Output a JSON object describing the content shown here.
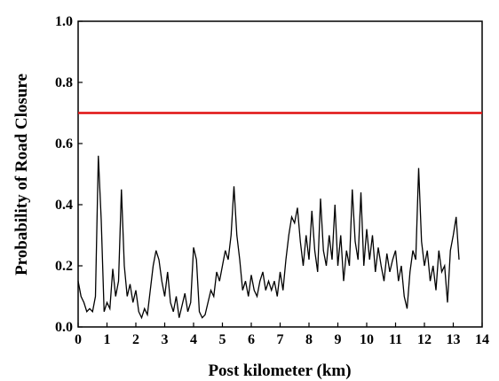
{
  "chart_data": {
    "type": "line",
    "xlabel": "Post kilometer (km)",
    "ylabel": "Probability of Road Closure",
    "x": [
      0.0,
      0.1,
      0.2,
      0.3,
      0.4,
      0.5,
      0.6,
      0.7,
      0.8,
      0.9,
      1.0,
      1.1,
      1.2,
      1.3,
      1.4,
      1.5,
      1.6,
      1.7,
      1.8,
      1.9,
      2.0,
      2.1,
      2.2,
      2.3,
      2.4,
      2.5,
      2.6,
      2.7,
      2.8,
      2.9,
      3.0,
      3.1,
      3.2,
      3.3,
      3.4,
      3.5,
      3.6,
      3.7,
      3.8,
      3.9,
      4.0,
      4.1,
      4.2,
      4.3,
      4.4,
      4.5,
      4.6,
      4.7,
      4.8,
      4.9,
      5.0,
      5.1,
      5.2,
      5.3,
      5.4,
      5.5,
      5.6,
      5.7,
      5.8,
      5.9,
      6.0,
      6.1,
      6.2,
      6.3,
      6.4,
      6.5,
      6.6,
      6.7,
      6.8,
      6.9,
      7.0,
      7.1,
      7.2,
      7.3,
      7.4,
      7.5,
      7.6,
      7.7,
      7.8,
      7.9,
      8.0,
      8.1,
      8.2,
      8.3,
      8.4,
      8.5,
      8.6,
      8.7,
      8.8,
      8.9,
      9.0,
      9.1,
      9.2,
      9.3,
      9.4,
      9.5,
      9.6,
      9.7,
      9.8,
      9.9,
      10.0,
      10.1,
      10.2,
      10.3,
      10.4,
      10.5,
      10.6,
      10.7,
      10.8,
      10.9,
      11.0,
      11.1,
      11.2,
      11.3,
      11.4,
      11.5,
      11.6,
      11.7,
      11.8,
      11.9,
      12.0,
      12.1,
      12.2,
      12.3,
      12.4,
      12.5,
      12.6,
      12.7,
      12.8,
      12.9,
      13.0,
      13.1,
      13.2
    ],
    "series": [
      {
        "color": "#000000",
        "values": [
          0.15,
          0.1,
          0.08,
          0.05,
          0.06,
          0.05,
          0.1,
          0.56,
          0.35,
          0.05,
          0.08,
          0.06,
          0.19,
          0.1,
          0.15,
          0.45,
          0.2,
          0.1,
          0.14,
          0.08,
          0.12,
          0.05,
          0.03,
          0.06,
          0.04,
          0.12,
          0.2,
          0.25,
          0.22,
          0.15,
          0.1,
          0.18,
          0.08,
          0.05,
          0.1,
          0.03,
          0.07,
          0.11,
          0.05,
          0.08,
          0.26,
          0.22,
          0.05,
          0.03,
          0.04,
          0.08,
          0.12,
          0.1,
          0.18,
          0.15,
          0.2,
          0.25,
          0.22,
          0.3,
          0.46,
          0.3,
          0.22,
          0.12,
          0.15,
          0.1,
          0.17,
          0.12,
          0.1,
          0.15,
          0.18,
          0.12,
          0.15,
          0.12,
          0.15,
          0.1,
          0.18,
          0.12,
          0.22,
          0.3,
          0.36,
          0.34,
          0.39,
          0.28,
          0.2,
          0.3,
          0.22,
          0.38,
          0.25,
          0.18,
          0.42,
          0.25,
          0.2,
          0.3,
          0.22,
          0.4,
          0.2,
          0.3,
          0.15,
          0.25,
          0.2,
          0.45,
          0.28,
          0.22,
          0.44,
          0.2,
          0.32,
          0.22,
          0.3,
          0.18,
          0.26,
          0.2,
          0.15,
          0.24,
          0.18,
          0.22,
          0.25,
          0.15,
          0.2,
          0.1,
          0.06,
          0.18,
          0.25,
          0.22,
          0.52,
          0.28,
          0.2,
          0.25,
          0.15,
          0.2,
          0.12,
          0.25,
          0.18,
          0.2,
          0.08,
          0.25,
          0.3,
          0.36,
          0.22
        ]
      }
    ],
    "hlines": [
      {
        "value": 0.7,
        "color": "#e01010"
      }
    ],
    "xlim": [
      0,
      14
    ],
    "xticks": [
      0,
      1,
      2,
      3,
      4,
      5,
      6,
      7,
      8,
      9,
      10,
      11,
      12,
      13,
      14
    ],
    "ylim": [
      0,
      1
    ],
    "yticks": [
      {
        "value": 0,
        "label": "0.0"
      },
      0.2,
      0.4,
      0.6,
      0.8,
      {
        "value": 1,
        "label": "1.0"
      }
    ]
  }
}
